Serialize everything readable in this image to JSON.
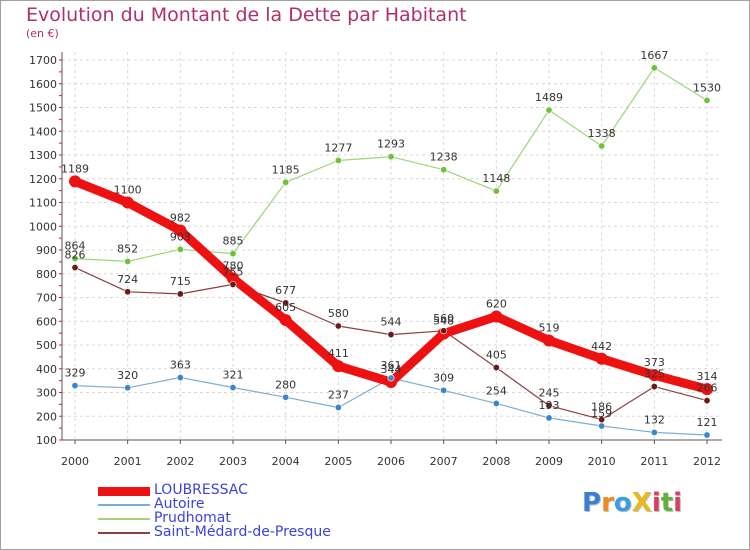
{
  "title": "Evolution du Montant de la Dette par Habitant",
  "unit_label": "(en €)",
  "logo": {
    "text": "ProXiti",
    "letters": [
      {
        "ch": "P",
        "color": "#3a7fd0"
      },
      {
        "ch": "r",
        "color": "#f08a20"
      },
      {
        "ch": "o",
        "color": "#3a9de0"
      },
      {
        "ch": "X",
        "color": "#e8b820"
      },
      {
        "ch": "i",
        "color": "#d84060"
      },
      {
        "ch": "t",
        "color": "#60b040"
      },
      {
        "ch": "i",
        "color": "#d84060"
      }
    ]
  },
  "chart_data": {
    "type": "line",
    "title": "Evolution du Montant de la Dette par Habitant",
    "ylabel": "(en €)",
    "xlabel": "",
    "ylim": [
      100,
      1700
    ],
    "y_ticks": [
      100,
      200,
      300,
      400,
      500,
      600,
      700,
      800,
      900,
      1000,
      1100,
      1200,
      1300,
      1400,
      1500,
      1600,
      1700
    ],
    "x": [
      "2000",
      "2001",
      "2002",
      "2003",
      "2004",
      "2005",
      "2006",
      "2007",
      "2008",
      "2009",
      "2010",
      "2011",
      "2012"
    ],
    "grid": true,
    "legend_position": "bottom-left",
    "series": [
      {
        "name": "LOUBRESSAC",
        "color": "#ee1111",
        "marker": "#ee1111",
        "width": 9,
        "values": [
          1189,
          1100,
          982,
          780,
          605,
          411,
          344,
          548,
          620,
          519,
          442,
          373,
          314
        ],
        "labels": [
          "1189",
          "1100",
          "982",
          "780",
          "605",
          "411",
          "344",
          "548",
          "620",
          "519",
          "442",
          "373",
          "314"
        ]
      },
      {
        "name": "Autoire",
        "color": "#7aaed8",
        "marker": "#3a86c8",
        "width": 1.2,
        "values": [
          329,
          320,
          363,
          321,
          280,
          237,
          361,
          309,
          254,
          193,
          159,
          132,
          121
        ],
        "labels": [
          "329",
          "320",
          "363",
          "321",
          "280",
          "237",
          "361",
          "309",
          "254",
          "193",
          "159",
          "132",
          "121"
        ]
      },
      {
        "name": "Prudhomat",
        "color": "#9ed47a",
        "marker": "#6cc23a",
        "width": 1.2,
        "values": [
          864,
          852,
          903,
          885,
          1185,
          1277,
          1293,
          1238,
          1148,
          1489,
          1338,
          1667,
          1530
        ],
        "labels": [
          "864",
          "852",
          "903",
          "885",
          "1185",
          "1277",
          "1293",
          "1238",
          "1148",
          "1489",
          "1338",
          "1667",
          "1530"
        ]
      },
      {
        "name": "Saint-Médard-de-Presque",
        "color": "#8a4040",
        "marker": "#6a1a1a",
        "width": 1.2,
        "values": [
          826,
          724,
          715,
          755,
          677,
          580,
          544,
          560,
          405,
          245,
          186,
          325,
          266
        ],
        "labels": [
          "826",
          "724",
          "715",
          "755",
          "677",
          "580",
          "544",
          "560",
          "405",
          "245",
          "186",
          "325",
          "266"
        ]
      }
    ]
  }
}
